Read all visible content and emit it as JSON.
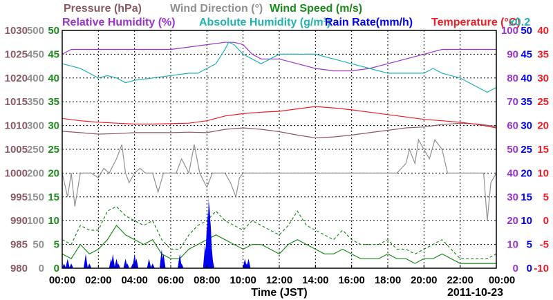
{
  "chart_data": {
    "type": "line",
    "title_rows": [
      [
        {
          "text": "Pressure (hPa)",
          "color": "#8b5a60"
        },
        {
          "text": "Wind Direction (°)",
          "color": "#909090"
        },
        {
          "text": "Wind Speed (m/s)",
          "color": "#1a8a1a"
        }
      ],
      [
        {
          "text": "Relative Humidity (%)",
          "color": "#9933cc"
        },
        {
          "text": "Absolute Humidity (g/m³)",
          "color": "#20b2b2"
        },
        {
          "text": "Rain Rate(mm/h)",
          "color": "#0000ee"
        },
        {
          "text": "Temperature (°C)",
          "color": "#ee1c25"
        },
        {
          "text": "x0.2",
          "color": "#20b2b2"
        }
      ]
    ],
    "xlabel": "Time (JST)",
    "date": "2011-10-23",
    "x_ticks": [
      "00:00",
      "02:00",
      "04:00",
      "06:00",
      "08:00",
      "10:00",
      "12:00",
      "14:00",
      "16:00",
      "18:00",
      "20:00",
      "22:00",
      "00:00"
    ],
    "xlim": [
      0,
      24
    ],
    "left_axes": [
      {
        "name": "pressure",
        "color": "#8b5a60",
        "ticks": [
          "1030",
          "1025",
          "1020",
          "1015",
          "1010",
          "1005",
          "1000",
          "995",
          "990",
          "985",
          "980"
        ],
        "range": [
          980,
          1030
        ]
      },
      {
        "name": "wind_direction",
        "color": "#909090",
        "ticks": [
          "500",
          "450",
          "400",
          "350",
          "300",
          "250",
          "200",
          "150",
          "100",
          "50",
          "0"
        ],
        "range": [
          0,
          500
        ]
      },
      {
        "name": "wind_speed",
        "color": "#1a8a1a",
        "ticks": [
          "50",
          "45",
          "40",
          "35",
          "30",
          "25",
          "20",
          "15",
          "10",
          "5",
          "0"
        ],
        "range": [
          0,
          50
        ]
      }
    ],
    "right_axes": [
      {
        "name": "relative_humidity",
        "color": "#9933cc",
        "ticks": [
          "100",
          "90",
          "80",
          "70",
          "60",
          "50",
          "40",
          "30",
          "20",
          "10",
          "0"
        ],
        "range": [
          0,
          100
        ]
      },
      {
        "name": "rain_rate",
        "color": "#0000ee",
        "ticks": [
          "50",
          "45",
          "40",
          "35",
          "30",
          "25",
          "20",
          "15",
          "10",
          "5",
          "0"
        ],
        "range": [
          0,
          50
        ]
      },
      {
        "name": "temperature",
        "color": "#ee1c25",
        "ticks": [
          "40",
          "35",
          "30",
          "25",
          "20",
          "15",
          "10",
          "5",
          "0",
          "-5",
          "-10"
        ],
        "range": [
          -10,
          40
        ]
      }
    ],
    "series": [
      {
        "name": "Pressure",
        "axis": "pressure",
        "color": "#8b5a60",
        "style": "solid",
        "x": [
          0,
          1,
          2,
          3,
          4,
          5,
          6,
          7,
          8,
          9,
          10,
          11,
          12,
          13,
          14,
          15,
          16,
          17,
          18,
          19,
          20,
          21,
          22,
          23,
          24
        ],
        "y": [
          1008.8,
          1008.5,
          1008.2,
          1008.3,
          1008.5,
          1008.5,
          1008.5,
          1008.6,
          1008.5,
          1009.2,
          1009.5,
          1009.2,
          1008.7,
          1008.0,
          1007.4,
          1007.6,
          1008.0,
          1008.5,
          1009.0,
          1009.5,
          1009.7,
          1010.2,
          1010.5,
          1010.3,
          1009.8
        ]
      },
      {
        "name": "Relative Humidity",
        "axis": "relative_humidity",
        "color": "#9933cc",
        "style": "solid",
        "x": [
          0,
          0.5,
          1,
          2,
          3,
          4,
          5,
          6,
          7,
          8,
          9,
          9.5,
          10,
          10.5,
          11,
          12,
          13,
          14,
          15,
          16,
          17,
          18,
          19,
          20,
          21,
          22,
          23,
          24
        ],
        "y": [
          90,
          92,
          92,
          92,
          92,
          92,
          92,
          92,
          93,
          94,
          95,
          95,
          94,
          90,
          88,
          88,
          86,
          84,
          83,
          83,
          84,
          86,
          88,
          90,
          92,
          92,
          92,
          92
        ]
      },
      {
        "name": "Absolute Humidity",
        "axis": "wind_speed",
        "color": "#20b2b2",
        "style": "solid",
        "x": [
          0,
          0.5,
          1,
          1.5,
          2,
          2.5,
          3,
          3.5,
          4,
          5,
          6,
          7,
          7.5,
          8,
          8.5,
          9,
          9.2,
          9.5,
          10,
          10.5,
          11,
          11.5,
          12,
          13,
          14,
          15,
          16,
          17,
          18,
          19,
          20,
          20.5,
          21,
          22,
          23,
          23.5,
          24
        ],
        "y": [
          43,
          42.5,
          42,
          41,
          40,
          40.5,
          40,
          39,
          39.5,
          40,
          40.5,
          41,
          41,
          42,
          43,
          46,
          47.5,
          47,
          45,
          44,
          43,
          44,
          45,
          45,
          45,
          44,
          43,
          42,
          41,
          41,
          41,
          42,
          41,
          40,
          38,
          37,
          38
        ]
      },
      {
        "name": "Temperature",
        "axis": "temperature",
        "color": "#ee1c25",
        "style": "solid",
        "x": [
          0,
          1,
          2,
          3,
          4,
          5,
          6,
          7,
          8,
          9,
          10,
          11,
          12,
          13,
          14,
          15,
          16,
          17,
          18,
          19,
          20,
          21,
          22,
          23,
          24
        ],
        "y": [
          21.5,
          21,
          20.7,
          20.5,
          20.3,
          20.3,
          20.4,
          20.5,
          21,
          22,
          22.5,
          22.8,
          23,
          23.5,
          24,
          23.7,
          23.3,
          22.8,
          22.3,
          21.8,
          21.3,
          21,
          20.7,
          20.2,
          19.5
        ]
      },
      {
        "name": "Wind Direction",
        "axis": "wind_direction",
        "color": "#909090",
        "style": "solid",
        "x": [
          0,
          0.3,
          0.5,
          0.7,
          1,
          1.3,
          1.6,
          2,
          2.3,
          2.6,
          3,
          3.3,
          3.5,
          3.7,
          4,
          4.3,
          4.6,
          5,
          5.3,
          5.6,
          6,
          6.3,
          6.6,
          7,
          7.3,
          7.6,
          8,
          8.3,
          8.6,
          9,
          9.3,
          9.6,
          9.8,
          10,
          10.3,
          10.6,
          11,
          11.3,
          11.6,
          12,
          12.5,
          13,
          13.5,
          14,
          14.5,
          15,
          15.5,
          16,
          16.5,
          17,
          17.5,
          18,
          18.5,
          19,
          19.2,
          19.5,
          19.7,
          20,
          20.3,
          20.6,
          21,
          21.3,
          21.6,
          22,
          22.5,
          23,
          23.3,
          23.5,
          23.7,
          24
        ],
        "y": [
          200,
          150,
          200,
          130,
          200,
          200,
          200,
          190,
          210,
          200,
          230,
          260,
          200,
          180,
          200,
          210,
          200,
          200,
          160,
          200,
          200,
          200,
          230,
          200,
          260,
          200,
          170,
          200,
          200,
          200,
          180,
          150,
          190,
          200,
          200,
          200,
          200,
          200,
          200,
          200,
          200,
          200,
          200,
          200,
          200,
          200,
          200,
          200,
          200,
          200,
          200,
          200,
          200,
          220,
          250,
          220,
          270,
          250,
          230,
          270,
          250,
          200,
          200,
          200,
          200,
          200,
          200,
          100,
          180,
          200
        ]
      },
      {
        "name": "Wind Speed",
        "axis": "wind_speed",
        "color": "#1a8a1a",
        "style": "solid",
        "x": [
          0,
          0.5,
          1,
          1.5,
          2,
          2.5,
          3,
          3.5,
          4,
          4.5,
          5,
          5.5,
          6,
          6.5,
          7,
          7.5,
          8,
          8.5,
          9,
          9.5,
          10,
          10.5,
          11,
          11.5,
          12,
          12.5,
          13,
          13.5,
          14,
          14.5,
          15,
          15.5,
          16,
          16.5,
          17,
          17.5,
          18,
          18.5,
          19,
          19.5,
          20,
          20.5,
          21,
          21.5,
          22,
          22.5,
          23,
          23.5,
          24
        ],
        "y": [
          3,
          2,
          5,
          3,
          4,
          6,
          9,
          7,
          6,
          5,
          6,
          3,
          2,
          2,
          4,
          5,
          6,
          7,
          6,
          5,
          4,
          5,
          5,
          4,
          3,
          5,
          6,
          5,
          4,
          3,
          3,
          4,
          3,
          2,
          2,
          2,
          3,
          2,
          2,
          1,
          2,
          2,
          3,
          2,
          1,
          1,
          1,
          1,
          1
        ]
      },
      {
        "name": "Wind Speed (max)",
        "axis": "wind_speed",
        "color": "#1a8a1a",
        "style": "dashed",
        "x": [
          0,
          0.5,
          1,
          1.5,
          2,
          2.5,
          3,
          3.5,
          4,
          4.5,
          5,
          5.5,
          6,
          6.5,
          7,
          7.5,
          8,
          8.5,
          9,
          9.5,
          10,
          10.5,
          11,
          11.5,
          12,
          12.5,
          13,
          13.5,
          14,
          14.5,
          15,
          15.5,
          16,
          16.5,
          17,
          17.5,
          18,
          18.5,
          19,
          19.5,
          20,
          20.5,
          21,
          21.5,
          22,
          22.5,
          23,
          23.5,
          24
        ],
        "y": [
          6,
          5,
          9,
          8,
          8,
          12,
          13,
          11,
          10,
          9,
          10,
          6,
          4,
          4,
          7,
          9,
          10,
          12,
          10,
          9,
          8,
          10,
          9,
          8,
          7,
          9,
          12,
          9,
          8,
          7,
          6,
          8,
          6,
          5,
          5,
          5,
          6,
          4,
          4,
          3,
          4,
          5,
          6,
          4,
          2,
          2,
          2,
          2,
          3
        ]
      },
      {
        "name": "Rain Rate",
        "axis": "rain_rate",
        "color": "#0000ee",
        "style": "bars",
        "x": [
          0.1,
          0.3,
          0.5,
          1.3,
          1.5,
          2.7,
          2.8,
          3.0,
          3.1,
          3.5,
          3.6,
          3.9,
          4.0,
          4.1,
          4.8,
          5.0,
          5.5,
          5.6,
          6.5,
          6.6,
          7.9,
          8.0,
          8.05,
          8.1,
          8.15,
          8.2,
          8.25,
          8.3,
          10.1,
          10.2,
          10.3
        ],
        "y": [
          1,
          2,
          1,
          3,
          1,
          2,
          3,
          2,
          1,
          2,
          1,
          1,
          3,
          2,
          2,
          1,
          4,
          3,
          3,
          1,
          5,
          9,
          12,
          15,
          14,
          10,
          5,
          2,
          2,
          1,
          2
        ]
      }
    ]
  }
}
